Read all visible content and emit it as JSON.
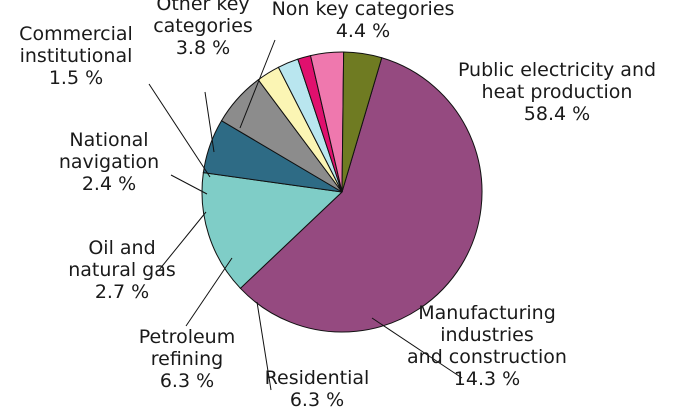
{
  "chart_data": {
    "type": "pie",
    "start_angle_deg": -73.5,
    "direction": "clockwise",
    "series": [
      {
        "name": "",
        "slices": [
          {
            "key": "public-electricity",
            "label": [
              "Public electricity and",
              "heat production"
            ],
            "value_label": "58.4 %",
            "value": 58.4,
            "color": "#954a80"
          },
          {
            "key": "manufacturing",
            "label": [
              "Manufacturing",
              "industries",
              "and construction"
            ],
            "value_label": "14.3 %",
            "value": 14.3,
            "color": "#7fcdc7"
          },
          {
            "key": "residential",
            "label": [
              "Residential"
            ],
            "value_label": "6.3 %",
            "value": 6.3,
            "color": "#2e6b85"
          },
          {
            "key": "petroleum-refining",
            "label": [
              "Petroleum",
              "refining"
            ],
            "value_label": "6.3 %",
            "value": 6.3,
            "color": "#8c8c8c"
          },
          {
            "key": "oil-natural-gas",
            "label": [
              "Oil and",
              "natural gas"
            ],
            "value_label": "2.7 %",
            "value": 2.7,
            "color": "#fbf5b4"
          },
          {
            "key": "national-navigation",
            "label": [
              "National",
              "navigation"
            ],
            "value_label": "2.4 %",
            "value": 2.4,
            "color": "#b9e6ef"
          },
          {
            "key": "commercial-institutional",
            "label": [
              "Commercial",
              "institutional"
            ],
            "value_label": "1.5 %",
            "value": 1.5,
            "color": "#e0106e"
          },
          {
            "key": "other-key",
            "label": [
              "Other key",
              "categories"
            ],
            "value_label": "3.8 %",
            "value": 3.8,
            "color": "#ef78ae"
          },
          {
            "key": "non-key",
            "label": [
              "Non key categories"
            ],
            "value_label": "4.4 %",
            "value": 4.4,
            "color": "#6f7b22"
          }
        ]
      }
    ]
  }
}
